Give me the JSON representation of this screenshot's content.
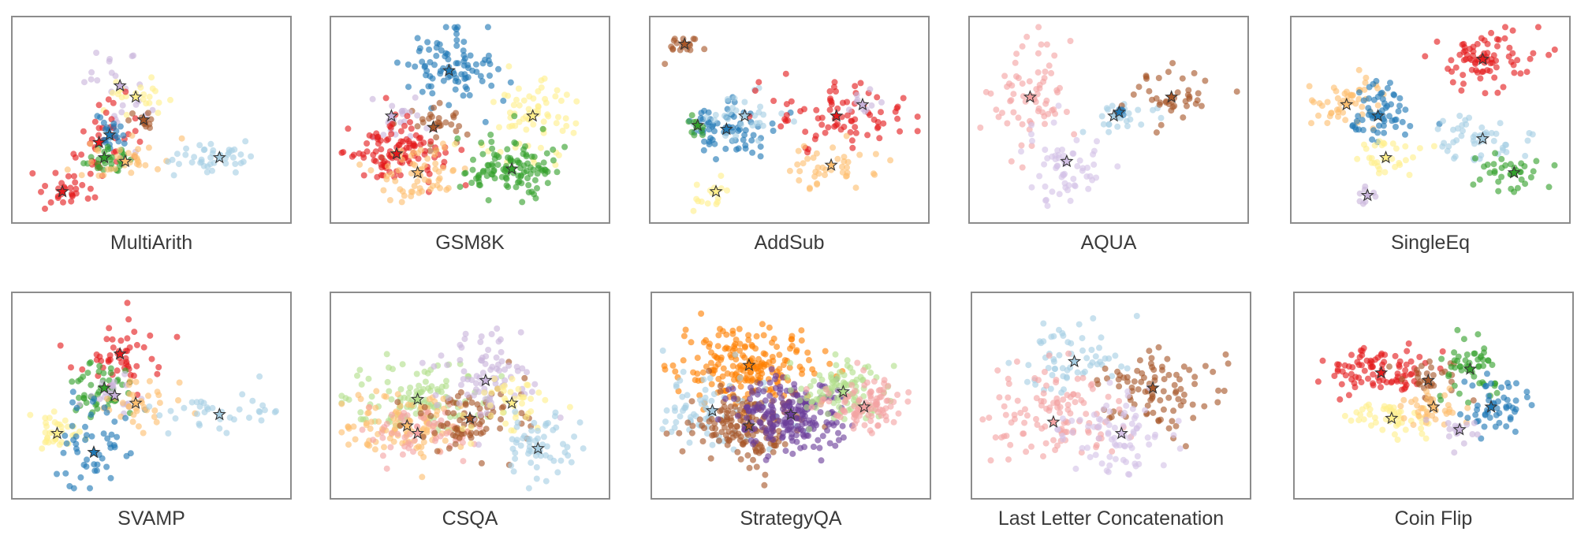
{
  "figure": {
    "panels": [
      {
        "title": "MultiArith"
      },
      {
        "title": "GSM8K"
      },
      {
        "title": "AddSub"
      },
      {
        "title": "AQUA"
      },
      {
        "title": "SingleEq"
      },
      {
        "title": "SVAMP"
      },
      {
        "title": "CSQA"
      },
      {
        "title": "StrategyQA"
      },
      {
        "title": "Last Letter Concatenation"
      },
      {
        "title": "Coin Flip"
      }
    ]
  },
  "chart_data": [
    {
      "type": "scatter",
      "title": "MultiArith",
      "axes": "hidden",
      "grid": false,
      "marker_center": "star",
      "xlim": [
        0,
        1
      ],
      "ylim": [
        0,
        1
      ],
      "clusters": [
        {
          "color": "#c9b4dc",
          "center": [
            0.38,
            0.68
          ],
          "spread": [
            0.06,
            0.14
          ],
          "n": 26
        },
        {
          "color": "#ffef8a",
          "center": [
            0.44,
            0.62
          ],
          "spread": [
            0.07,
            0.05
          ],
          "n": 22
        },
        {
          "color": "#a65628",
          "center": [
            0.47,
            0.5
          ],
          "spread": [
            0.03,
            0.03
          ],
          "n": 12
        },
        {
          "color": "#e41a1c",
          "center": [
            0.3,
            0.38
          ],
          "spread": [
            0.06,
            0.1
          ],
          "n": 40
        },
        {
          "color": "#1f78b4",
          "center": [
            0.34,
            0.42
          ],
          "spread": [
            0.03,
            0.05
          ],
          "n": 22
        },
        {
          "color": "#33a02c",
          "center": [
            0.32,
            0.3
          ],
          "spread": [
            0.06,
            0.04
          ],
          "n": 30
        },
        {
          "color": "#fdbf6f",
          "center": [
            0.4,
            0.28
          ],
          "spread": [
            0.08,
            0.05
          ],
          "n": 32
        },
        {
          "color": "#a6cee3",
          "center": [
            0.76,
            0.3
          ],
          "spread": [
            0.1,
            0.04
          ],
          "n": 42
        },
        {
          "color": "#e41a1c",
          "center": [
            0.16,
            0.12
          ],
          "spread": [
            0.06,
            0.05
          ],
          "n": 30
        }
      ]
    },
    {
      "type": "scatter",
      "title": "GSM8K",
      "axes": "hidden",
      "grid": false,
      "marker_center": "star",
      "xlim": [
        0,
        1
      ],
      "ylim": [
        0,
        1
      ],
      "clusters": [
        {
          "color": "#1f78b4",
          "center": [
            0.42,
            0.76
          ],
          "spread": [
            0.09,
            0.1
          ],
          "n": 90
        },
        {
          "color": "#a65628",
          "center": [
            0.36,
            0.46
          ],
          "spread": [
            0.06,
            0.06
          ],
          "n": 30
        },
        {
          "color": "#c9b4dc",
          "center": [
            0.2,
            0.52
          ],
          "spread": [
            0.06,
            0.05
          ],
          "n": 20
        },
        {
          "color": "#e41a1c",
          "center": [
            0.22,
            0.32
          ],
          "spread": [
            0.09,
            0.08
          ],
          "n": 110
        },
        {
          "color": "#fdbf6f",
          "center": [
            0.3,
            0.22
          ],
          "spread": [
            0.08,
            0.07
          ],
          "n": 60
        },
        {
          "color": "#ffef8a",
          "center": [
            0.74,
            0.52
          ],
          "spread": [
            0.09,
            0.12
          ],
          "n": 70
        },
        {
          "color": "#33a02c",
          "center": [
            0.66,
            0.24
          ],
          "spread": [
            0.1,
            0.08
          ],
          "n": 110
        }
      ]
    },
    {
      "type": "scatter",
      "title": "AddSub",
      "axes": "hidden",
      "grid": false,
      "marker_center": "star",
      "xlim": [
        0,
        1
      ],
      "ylim": [
        0,
        1
      ],
      "clusters": [
        {
          "color": "#a65628",
          "center": [
            0.1,
            0.9
          ],
          "spread": [
            0.05,
            0.03
          ],
          "n": 18
        },
        {
          "color": "#1f78b4",
          "center": [
            0.26,
            0.45
          ],
          "spread": [
            0.08,
            0.08
          ],
          "n": 70
        },
        {
          "color": "#a6cee3",
          "center": [
            0.33,
            0.52
          ],
          "spread": [
            0.08,
            0.06
          ],
          "n": 30
        },
        {
          "color": "#33a02c",
          "center": [
            0.15,
            0.47
          ],
          "spread": [
            0.03,
            0.03
          ],
          "n": 10
        },
        {
          "color": "#ffef8a",
          "center": [
            0.22,
            0.12
          ],
          "spread": [
            0.04,
            0.04
          ],
          "n": 16
        },
        {
          "color": "#e41a1c",
          "center": [
            0.68,
            0.52
          ],
          "spread": [
            0.12,
            0.08
          ],
          "n": 80
        },
        {
          "color": "#c9b4dc",
          "center": [
            0.78,
            0.58
          ],
          "spread": [
            0.04,
            0.04
          ],
          "n": 10
        },
        {
          "color": "#fdbf6f",
          "center": [
            0.66,
            0.26
          ],
          "spread": [
            0.09,
            0.06
          ],
          "n": 40
        }
      ]
    },
    {
      "type": "scatter",
      "title": "AQUA",
      "axes": "hidden",
      "grid": false,
      "marker_center": "star",
      "xlim": [
        0,
        1
      ],
      "ylim": [
        0,
        1
      ],
      "clusters": [
        {
          "color": "#f4a3a3",
          "center": [
            0.2,
            0.62
          ],
          "spread": [
            0.08,
            0.16
          ],
          "n": 70
        },
        {
          "color": "#d4c1e6",
          "center": [
            0.34,
            0.28
          ],
          "spread": [
            0.08,
            0.1
          ],
          "n": 60
        },
        {
          "color": "#a6cee3",
          "center": [
            0.52,
            0.52
          ],
          "spread": [
            0.08,
            0.05
          ],
          "n": 24
        },
        {
          "color": "#a65628",
          "center": [
            0.74,
            0.62
          ],
          "spread": [
            0.1,
            0.08
          ],
          "n": 40
        },
        {
          "color": "#1f78b4",
          "center": [
            0.54,
            0.54
          ],
          "spread": [
            0.02,
            0.02
          ],
          "n": 4
        }
      ]
    },
    {
      "type": "scatter",
      "title": "SingleEq",
      "axes": "hidden",
      "grid": false,
      "marker_center": "star",
      "xlim": [
        0,
        1
      ],
      "ylim": [
        0,
        1
      ],
      "clusters": [
        {
          "color": "#e41a1c",
          "center": [
            0.7,
            0.82
          ],
          "spread": [
            0.1,
            0.08
          ],
          "n": 80
        },
        {
          "color": "#fdbf6f",
          "center": [
            0.18,
            0.58
          ],
          "spread": [
            0.06,
            0.08
          ],
          "n": 50
        },
        {
          "color": "#1f78b4",
          "center": [
            0.3,
            0.52
          ],
          "spread": [
            0.06,
            0.08
          ],
          "n": 60
        },
        {
          "color": "#ffef8a",
          "center": [
            0.33,
            0.3
          ],
          "spread": [
            0.06,
            0.06
          ],
          "n": 30
        },
        {
          "color": "#a6cee3",
          "center": [
            0.7,
            0.4
          ],
          "spread": [
            0.09,
            0.06
          ],
          "n": 50
        },
        {
          "color": "#33a02c",
          "center": [
            0.82,
            0.22
          ],
          "spread": [
            0.07,
            0.05
          ],
          "n": 36
        },
        {
          "color": "#c9b4dc",
          "center": [
            0.26,
            0.1
          ],
          "spread": [
            0.03,
            0.03
          ],
          "n": 8
        }
      ]
    },
    {
      "type": "scatter",
      "title": "SVAMP",
      "axes": "hidden",
      "grid": false,
      "marker_center": "star",
      "xlim": [
        0,
        1
      ],
      "ylim": [
        0,
        1
      ],
      "clusters": [
        {
          "color": "#e41a1c",
          "center": [
            0.38,
            0.72
          ],
          "spread": [
            0.1,
            0.1
          ],
          "n": 50
        },
        {
          "color": "#33a02c",
          "center": [
            0.32,
            0.54
          ],
          "spread": [
            0.07,
            0.07
          ],
          "n": 50
        },
        {
          "color": "#c9b4dc",
          "center": [
            0.36,
            0.5
          ],
          "spread": [
            0.06,
            0.06
          ],
          "n": 24
        },
        {
          "color": "#fdbf6f",
          "center": [
            0.44,
            0.46
          ],
          "spread": [
            0.07,
            0.06
          ],
          "n": 36
        },
        {
          "color": "#a6cee3",
          "center": [
            0.76,
            0.4
          ],
          "spread": [
            0.12,
            0.05
          ],
          "n": 36
        },
        {
          "color": "#ffef8a",
          "center": [
            0.14,
            0.3
          ],
          "spread": [
            0.05,
            0.05
          ],
          "n": 34
        },
        {
          "color": "#1f78b4",
          "center": [
            0.28,
            0.2
          ],
          "spread": [
            0.08,
            0.12
          ],
          "n": 50
        }
      ]
    },
    {
      "type": "scatter",
      "title": "CSQA",
      "axes": "hidden",
      "grid": false,
      "marker_center": "star",
      "xlim": [
        0,
        1
      ],
      "ylim": [
        0,
        1
      ],
      "clusters": [
        {
          "color": "#b2df8a",
          "center": [
            0.3,
            0.48
          ],
          "spread": [
            0.14,
            0.1
          ],
          "n": 110
        },
        {
          "color": "#fdbf6f",
          "center": [
            0.26,
            0.34
          ],
          "spread": [
            0.12,
            0.09
          ],
          "n": 110
        },
        {
          "color": "#f4a3a3",
          "center": [
            0.3,
            0.3
          ],
          "spread": [
            0.1,
            0.08
          ],
          "n": 60
        },
        {
          "color": "#a65628",
          "center": [
            0.5,
            0.38
          ],
          "spread": [
            0.1,
            0.08
          ],
          "n": 80
        },
        {
          "color": "#c9b4dc",
          "center": [
            0.56,
            0.58
          ],
          "spread": [
            0.09,
            0.12
          ],
          "n": 80
        },
        {
          "color": "#ffef8a",
          "center": [
            0.66,
            0.46
          ],
          "spread": [
            0.08,
            0.08
          ],
          "n": 40
        },
        {
          "color": "#a6cee3",
          "center": [
            0.76,
            0.22
          ],
          "spread": [
            0.08,
            0.08
          ],
          "n": 60
        }
      ]
    },
    {
      "type": "scatter",
      "title": "StrategyQA",
      "axes": "hidden",
      "grid": false,
      "marker_center": "star",
      "xlim": [
        0,
        1
      ],
      "ylim": [
        0,
        1
      ],
      "clusters": [
        {
          "color": "#ff7f00",
          "center": [
            0.34,
            0.66
          ],
          "spread": [
            0.12,
            0.1
          ],
          "n": 200
        },
        {
          "color": "#a6cee3",
          "center": [
            0.2,
            0.42
          ],
          "spread": [
            0.12,
            0.1
          ],
          "n": 80
        },
        {
          "color": "#a65628",
          "center": [
            0.34,
            0.34
          ],
          "spread": [
            0.1,
            0.1
          ],
          "n": 160
        },
        {
          "color": "#6a3d9a",
          "center": [
            0.5,
            0.4
          ],
          "spread": [
            0.1,
            0.1
          ],
          "n": 220
        },
        {
          "color": "#b2df8a",
          "center": [
            0.7,
            0.52
          ],
          "spread": [
            0.09,
            0.08
          ],
          "n": 100
        },
        {
          "color": "#f4a3a3",
          "center": [
            0.78,
            0.44
          ],
          "spread": [
            0.08,
            0.08
          ],
          "n": 100
        }
      ]
    },
    {
      "type": "scatter",
      "title": "Last Letter Concatenation",
      "axes": "hidden",
      "grid": false,
      "marker_center": "star",
      "xlim": [
        0,
        1
      ],
      "ylim": [
        0,
        1
      ],
      "clusters": [
        {
          "color": "#a6cee3",
          "center": [
            0.36,
            0.68
          ],
          "spread": [
            0.1,
            0.1
          ],
          "n": 60
        },
        {
          "color": "#a65628",
          "center": [
            0.66,
            0.54
          ],
          "spread": [
            0.12,
            0.12
          ],
          "n": 90
        },
        {
          "color": "#f4a3a3",
          "center": [
            0.28,
            0.36
          ],
          "spread": [
            0.12,
            0.13
          ],
          "n": 110
        },
        {
          "color": "#d4c1e6",
          "center": [
            0.54,
            0.3
          ],
          "spread": [
            0.1,
            0.12
          ],
          "n": 80
        }
      ]
    },
    {
      "type": "scatter",
      "title": "Coin Flip",
      "axes": "hidden",
      "grid": false,
      "marker_center": "star",
      "xlim": [
        0,
        1
      ],
      "ylim": [
        0,
        1
      ],
      "clusters": [
        {
          "color": "#e41a1c",
          "center": [
            0.3,
            0.62
          ],
          "spread": [
            0.1,
            0.06
          ],
          "n": 90
        },
        {
          "color": "#a65628",
          "center": [
            0.48,
            0.58
          ],
          "spread": [
            0.06,
            0.05
          ],
          "n": 30
        },
        {
          "color": "#33a02c",
          "center": [
            0.64,
            0.64
          ],
          "spread": [
            0.07,
            0.08
          ],
          "n": 50
        },
        {
          "color": "#ffef8a",
          "center": [
            0.34,
            0.38
          ],
          "spread": [
            0.08,
            0.05
          ],
          "n": 50
        },
        {
          "color": "#fdbf6f",
          "center": [
            0.5,
            0.44
          ],
          "spread": [
            0.06,
            0.05
          ],
          "n": 40
        },
        {
          "color": "#1f78b4",
          "center": [
            0.72,
            0.44
          ],
          "spread": [
            0.07,
            0.07
          ],
          "n": 50
        },
        {
          "color": "#c9b4dc",
          "center": [
            0.6,
            0.32
          ],
          "spread": [
            0.04,
            0.04
          ],
          "n": 16
        }
      ]
    }
  ]
}
